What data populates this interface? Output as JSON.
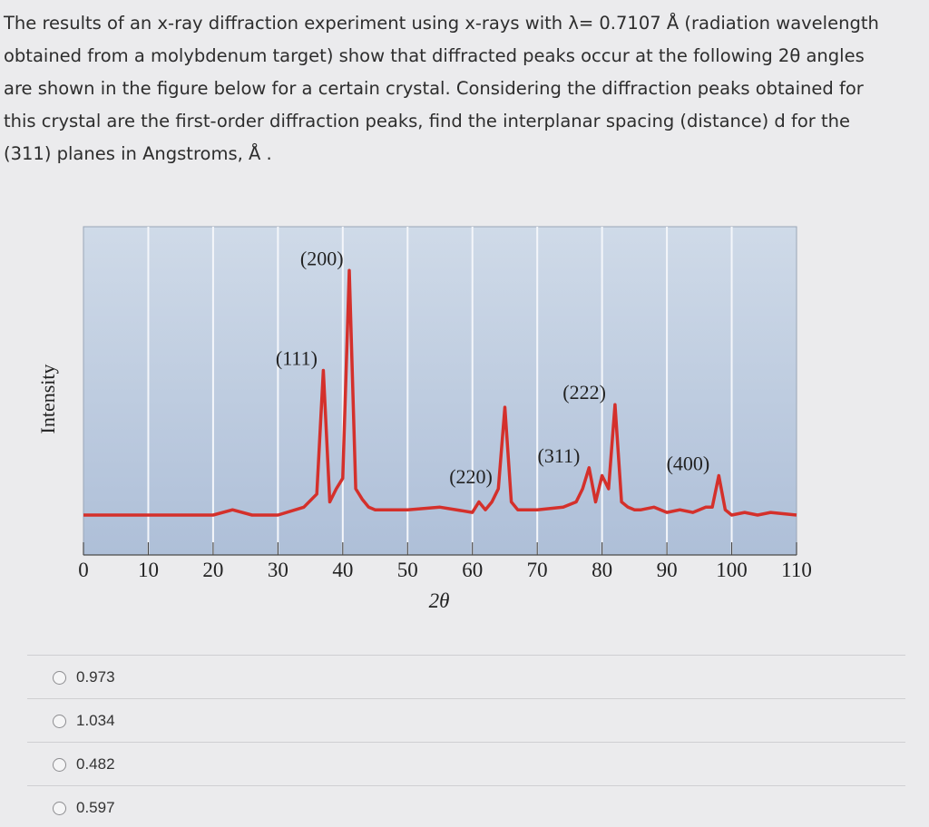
{
  "question": {
    "lines": [
      "The results of an x-ray diffraction experiment using x-rays with λ= 0.7107 Å (radiation wavelength",
      "obtained from a molybdenum target) show that diffracted peaks occur at the following 2θ angles",
      "are shown in the figure below for a certain crystal. Considering the diffraction peaks obtained for",
      "this crystal are the first-order diffraction peaks, find the interplanar spacing (distance) d for the",
      "(311) planes in Angstroms, Å ."
    ]
  },
  "chart_data": {
    "type": "line",
    "xlabel": "2θ",
    "ylabel": "Intensity",
    "xlim": [
      0,
      110
    ],
    "xticks": [
      0,
      10,
      20,
      30,
      40,
      50,
      60,
      70,
      80,
      90,
      100,
      110
    ],
    "grid": true,
    "series": [
      {
        "color": "#d4302b",
        "x": [
          0,
          10,
          20,
          23,
          26,
          30,
          34,
          36,
          37,
          38,
          39,
          40,
          41,
          42,
          43,
          44,
          45,
          50,
          55,
          60,
          61,
          62,
          63,
          64,
          65,
          66,
          67,
          70,
          74,
          76,
          77,
          78,
          79,
          80,
          81,
          82,
          83,
          84,
          85,
          86,
          88,
          90,
          92,
          94,
          96,
          97,
          98,
          99,
          100,
          102,
          104,
          106,
          110
        ],
        "y": [
          0,
          0,
          0,
          0.02,
          0,
          0,
          0.03,
          0.08,
          0.55,
          0.05,
          0.1,
          0.14,
          0.93,
          0.1,
          0.06,
          0.03,
          0.02,
          0.02,
          0.03,
          0.01,
          0.05,
          0.02,
          0.05,
          0.1,
          0.41,
          0.05,
          0.02,
          0.02,
          0.03,
          0.05,
          0.1,
          0.18,
          0.05,
          0.15,
          0.1,
          0.42,
          0.05,
          0.03,
          0.02,
          0.02,
          0.03,
          0.01,
          0.02,
          0.01,
          0.03,
          0.03,
          0.15,
          0.02,
          0.0,
          0.01,
          0.0,
          0.01,
          0.0
        ]
      }
    ],
    "annotations": [
      {
        "text": "(111)",
        "x": 37.5
      },
      {
        "text": "(200)",
        "x": 41.5
      },
      {
        "text": "(220)",
        "x": 64.5
      },
      {
        "text": "(311)",
        "x": 78
      },
      {
        "text": "(222)",
        "x": 82
      },
      {
        "text": "(400)",
        "x": 98
      }
    ]
  },
  "options": [
    {
      "label": "0.973"
    },
    {
      "label": "1.034"
    },
    {
      "label": "0.482"
    },
    {
      "label": "0.597"
    }
  ]
}
